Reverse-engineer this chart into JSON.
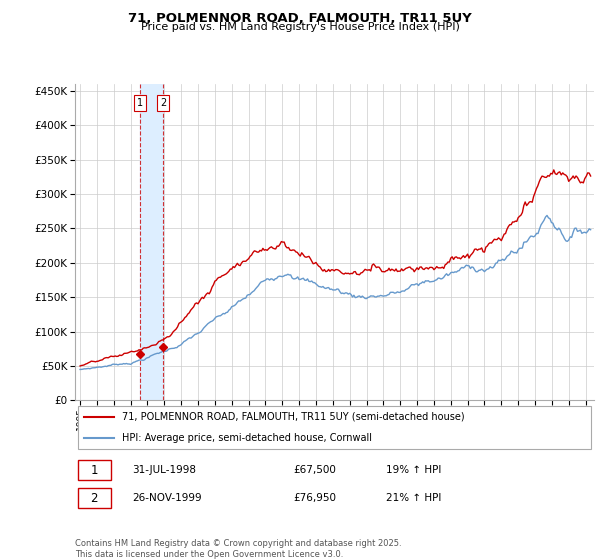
{
  "title": "71, POLMENNOR ROAD, FALMOUTH, TR11 5UY",
  "subtitle": "Price paid vs. HM Land Registry's House Price Index (HPI)",
  "legend_line1": "71, POLMENNOR ROAD, FALMOUTH, TR11 5UY (semi-detached house)",
  "legend_line2": "HPI: Average price, semi-detached house, Cornwall",
  "footer": "Contains HM Land Registry data © Crown copyright and database right 2025.\nThis data is licensed under the Open Government Licence v3.0.",
  "table_rows": [
    {
      "num": "1",
      "date": "31-JUL-1998",
      "price": "£67,500",
      "change": "19% ↑ HPI"
    },
    {
      "num": "2",
      "date": "26-NOV-1999",
      "price": "£76,950",
      "change": "21% ↑ HPI"
    }
  ],
  "price_color": "#cc0000",
  "hpi_color": "#6699cc",
  "shade_color": "#ddeeff",
  "ylim": [
    0,
    460000
  ],
  "yticks": [
    0,
    50000,
    100000,
    150000,
    200000,
    250000,
    300000,
    350000,
    400000,
    450000
  ],
  "sale1_year": 1998.58,
  "sale1_price": 67500,
  "sale2_year": 1999.92,
  "sale2_price": 76950,
  "xmin": 1995.0,
  "xmax": 2025.5
}
